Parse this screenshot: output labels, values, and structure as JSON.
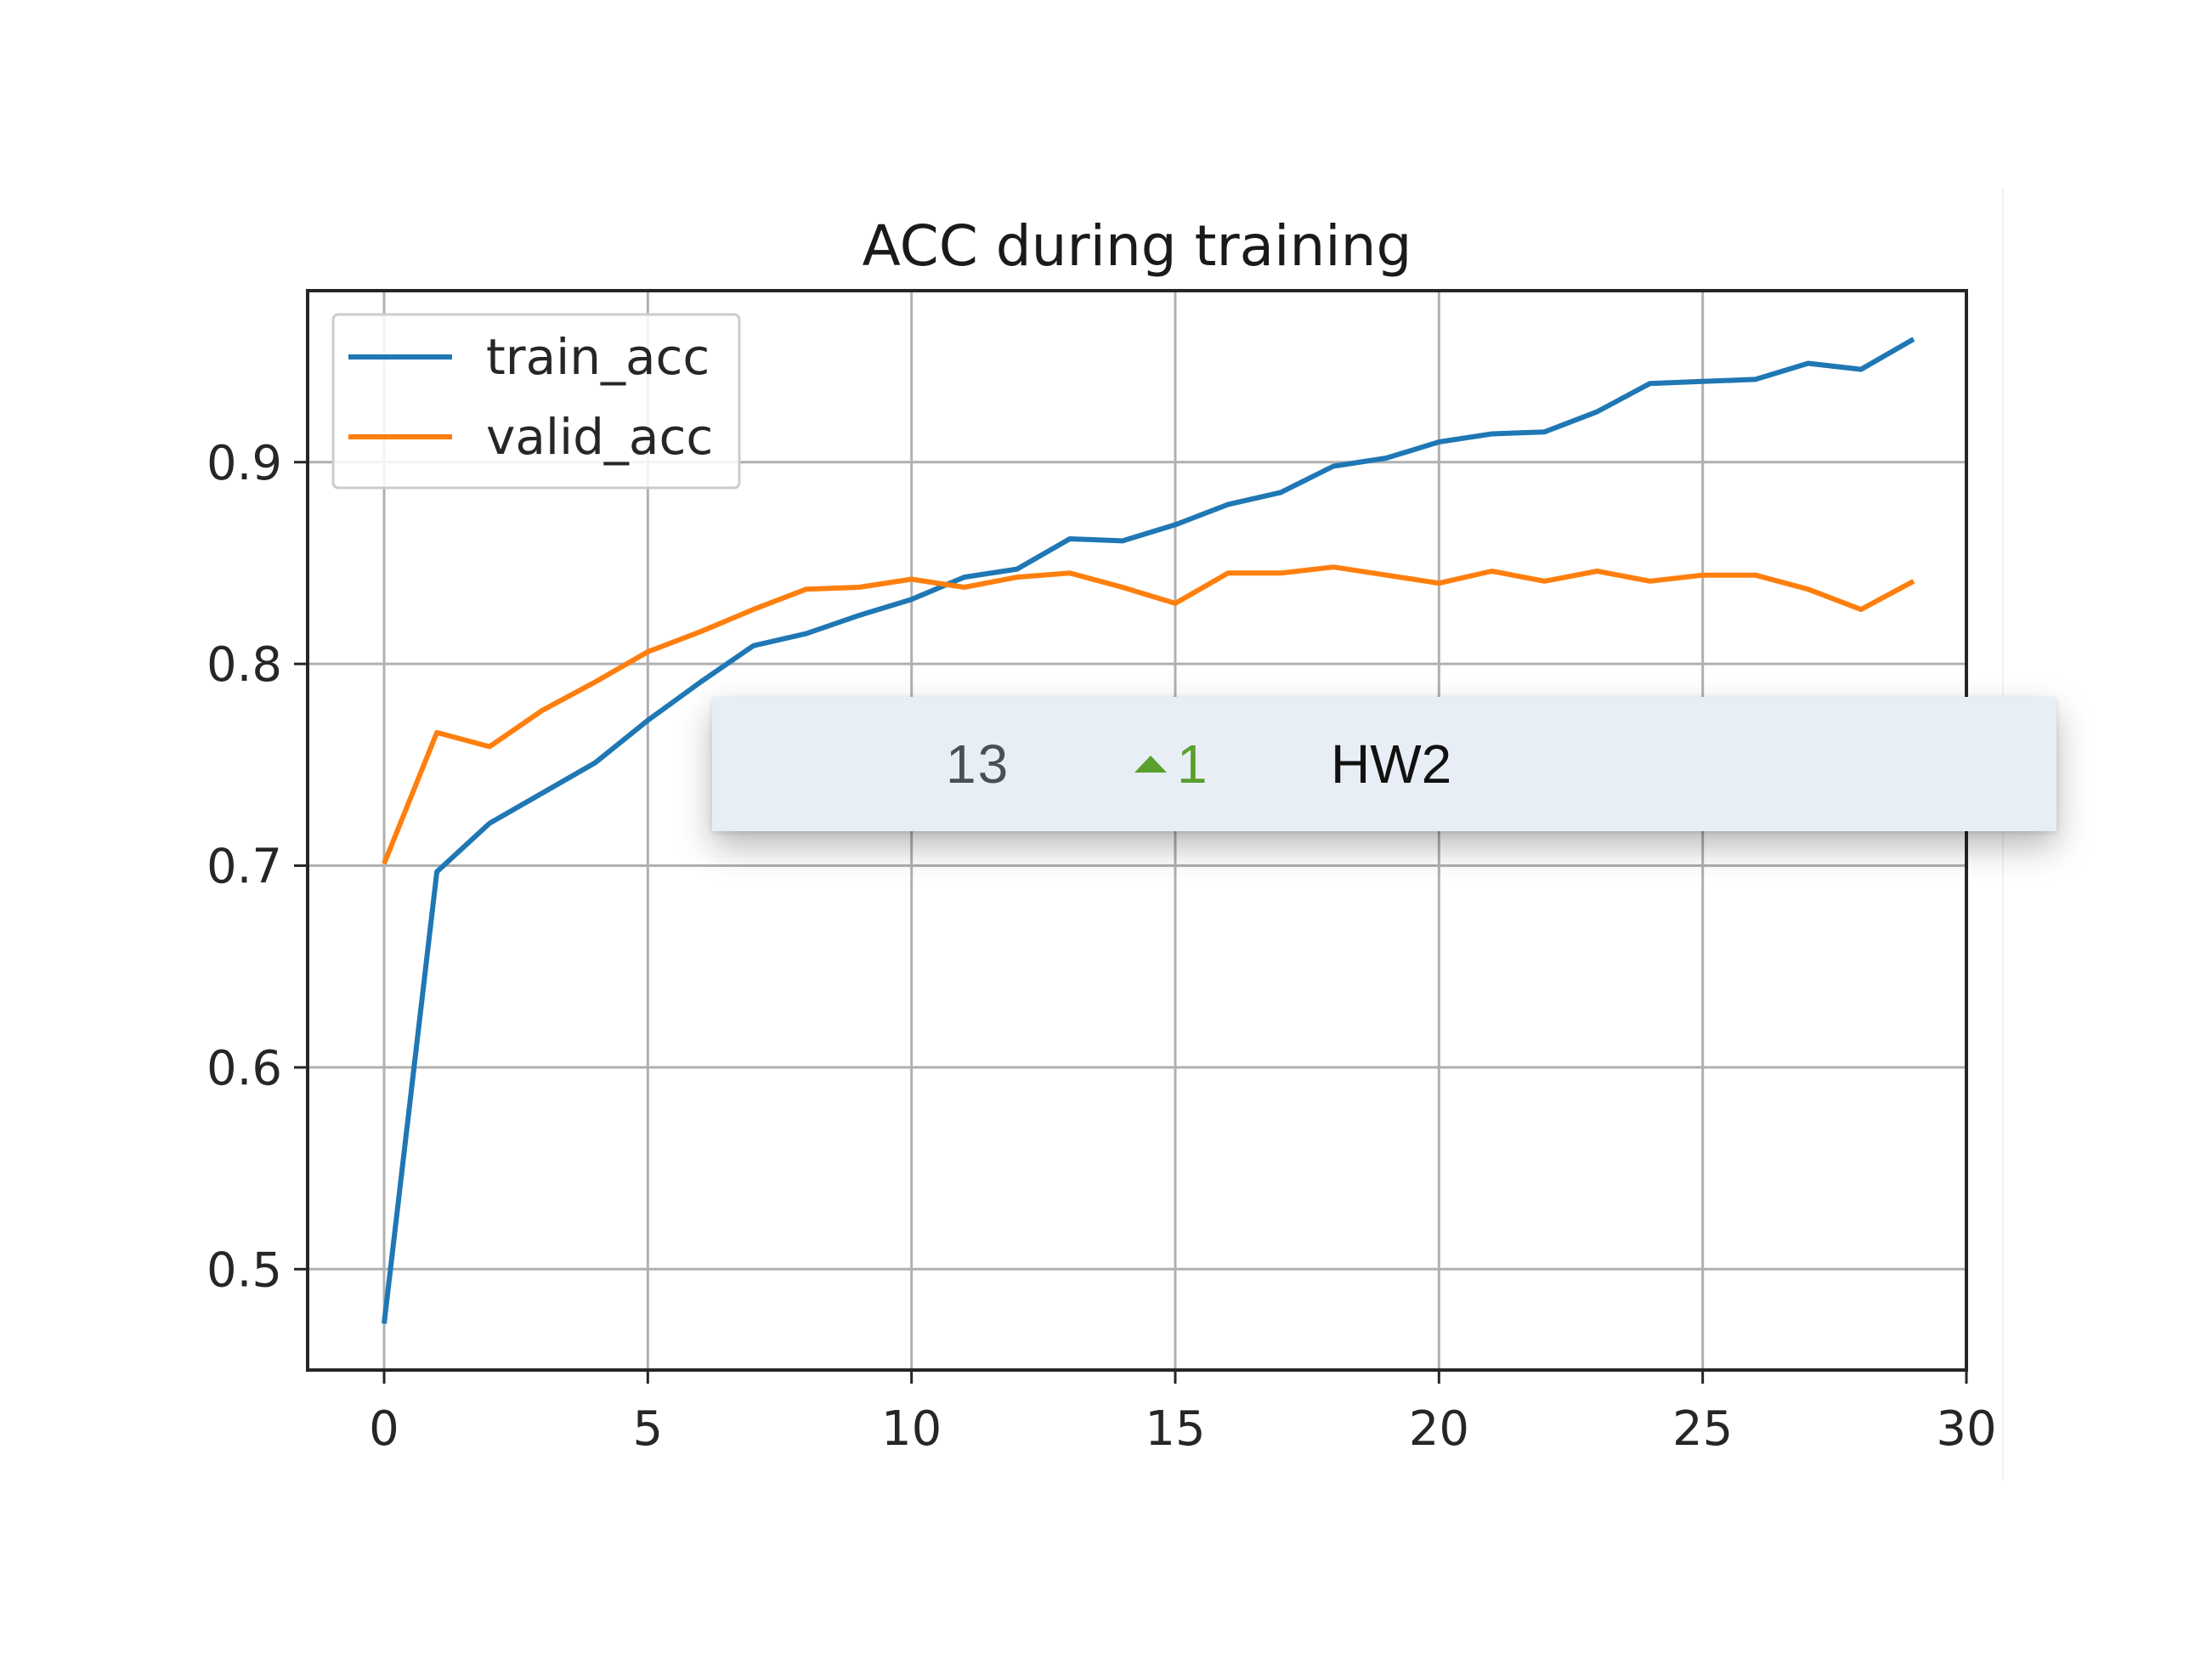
{
  "chart_data": {
    "type": "line",
    "title": "ACC during training",
    "xlabel": "",
    "ylabel": "",
    "xlim": [
      -1.45,
      30.0
    ],
    "ylim": [
      0.45,
      0.985
    ],
    "xticks": [
      0,
      5,
      10,
      15,
      20,
      25,
      30
    ],
    "yticks": [
      0.5,
      0.6,
      0.7,
      0.8,
      0.9
    ],
    "grid": true,
    "legend": "upper-left",
    "x": [
      0,
      1,
      2,
      3,
      4,
      5,
      6,
      7,
      8,
      9,
      10,
      11,
      12,
      13,
      14,
      15,
      16,
      17,
      18,
      19,
      20,
      21,
      22,
      23,
      24,
      25,
      26,
      27,
      28,
      29
    ],
    "series": [
      {
        "name": "train_acc",
        "color": "#1f77b4",
        "values": [
          0.473,
          0.697,
          0.721,
          0.736,
          0.751,
          0.772,
          0.791,
          0.809,
          0.815,
          0.824,
          0.832,
          0.843,
          0.847,
          0.862,
          0.861,
          0.869,
          0.879,
          0.885,
          0.898,
          0.902,
          0.91,
          0.914,
          0.915,
          0.925,
          0.939,
          0.94,
          0.941,
          0.949,
          0.946,
          0.961
        ]
      },
      {
        "name": "valid_acc",
        "color": "#ff7f0e",
        "values": [
          0.701,
          0.766,
          0.759,
          0.777,
          0.791,
          0.806,
          0.816,
          0.827,
          0.837,
          0.838,
          0.842,
          0.838,
          0.843,
          0.845,
          0.838,
          0.83,
          0.845,
          0.845,
          0.848,
          0.844,
          0.84,
          0.846,
          0.841,
          0.846,
          0.841,
          0.844,
          0.844,
          0.837,
          0.827,
          0.841
        ]
      }
    ]
  },
  "popup": {
    "rank": "13",
    "change": "1",
    "change_color": "#5aa02c",
    "change_icon": "triangle-up-icon",
    "name": "HW2"
  }
}
